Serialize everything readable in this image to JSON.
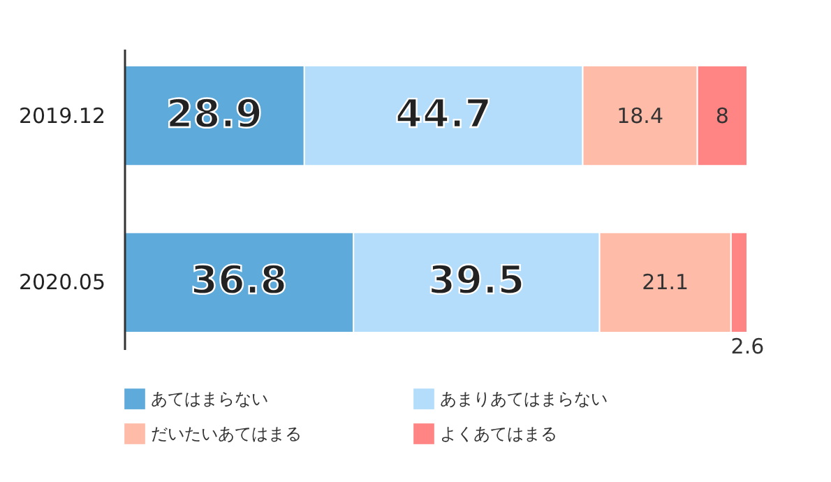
{
  "chart_data": {
    "type": "bar",
    "orientation": "horizontal",
    "stacked": true,
    "data_labels": true,
    "legend": "bottom",
    "categories": [
      "2019.12",
      "2020.05"
    ],
    "series": [
      {
        "name": "あてはまらない",
        "color": "#5eaada",
        "values": [
          28.9,
          36.8
        ]
      },
      {
        "name": "あまりあてはまらない",
        "color": "#b3ddfb",
        "values": [
          44.7,
          39.5
        ]
      },
      {
        "name": "だいたいあてはまる",
        "color": "#fdbba8",
        "values": [
          18.4,
          21.1
        ]
      },
      {
        "name": "よくあてはまる",
        "color": "#ff8585",
        "values": [
          8,
          2.6
        ]
      }
    ]
  }
}
